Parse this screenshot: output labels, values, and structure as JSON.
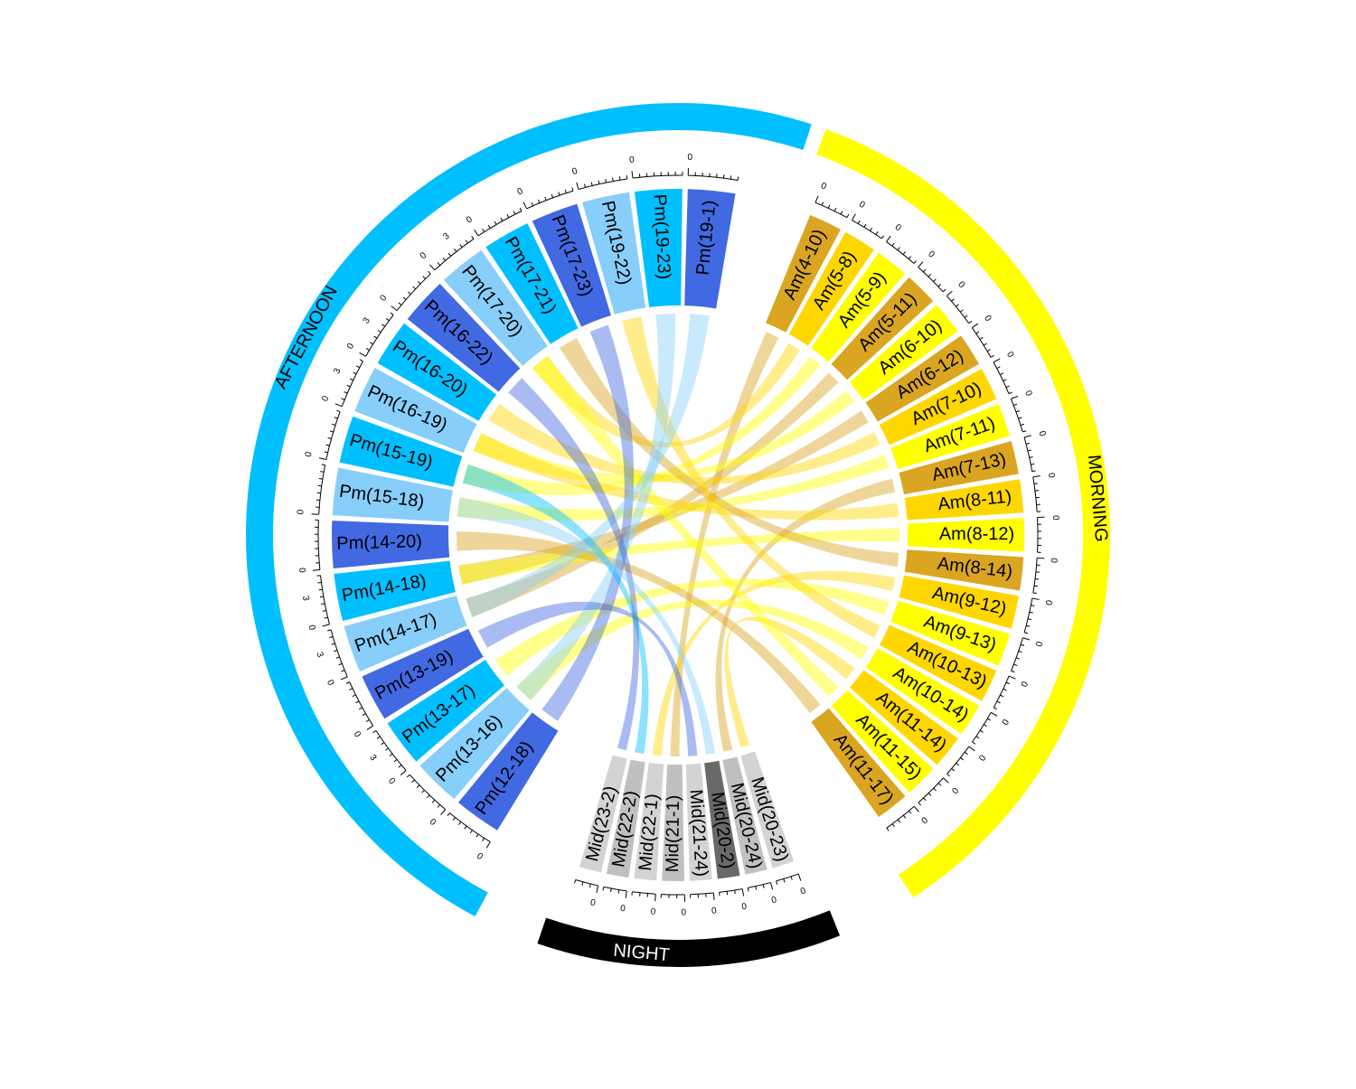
{
  "groups": [
    {
      "id": "morning",
      "label": "MORNING",
      "color": "#FFFF00",
      "text_color": "#000000"
    },
    {
      "id": "night",
      "label": "NIGHT",
      "color": "#000000",
      "text_color": "#FFFFFF"
    },
    {
      "id": "afternoon",
      "label": "AFTERNOON",
      "color": "#00BFFF",
      "text_color": "#000000"
    }
  ],
  "sectors": [
    {
      "label": "Am(4-10)",
      "group": "morning",
      "color": "#DAA520",
      "ticks": [
        "0"
      ]
    },
    {
      "label": "Am(5-8)",
      "group": "morning",
      "color": "#FFD700",
      "ticks": [
        "0"
      ]
    },
    {
      "label": "Am(5-9)",
      "group": "morning",
      "color": "#FFFF00",
      "ticks": [
        "0"
      ]
    },
    {
      "label": "Am(5-11)",
      "group": "morning",
      "color": "#DAA520",
      "ticks": [
        "0"
      ]
    },
    {
      "label": "Am(6-10)",
      "group": "morning",
      "color": "#FFFF00",
      "ticks": [
        "0"
      ]
    },
    {
      "label": "Am(6-12)",
      "group": "morning",
      "color": "#DAA520",
      "ticks": [
        "0"
      ]
    },
    {
      "label": "Am(7-10)",
      "group": "morning",
      "color": "#FFD700",
      "ticks": [
        "0"
      ]
    },
    {
      "label": "Am(7-11)",
      "group": "morning",
      "color": "#FFFF00",
      "ticks": [
        "0"
      ]
    },
    {
      "label": "Am(7-13)",
      "group": "morning",
      "color": "#DAA520",
      "ticks": [
        "0"
      ]
    },
    {
      "label": "Am(8-11)",
      "group": "morning",
      "color": "#FFD700",
      "ticks": [
        "0"
      ]
    },
    {
      "label": "Am(8-12)",
      "group": "morning",
      "color": "#FFFF00",
      "ticks": [
        "0"
      ]
    },
    {
      "label": "Am(8-14)",
      "group": "morning",
      "color": "#DAA520",
      "ticks": [
        "0"
      ]
    },
    {
      "label": "Am(9-12)",
      "group": "morning",
      "color": "#FFD700",
      "ticks": [
        "0"
      ]
    },
    {
      "label": "Am(9-13)",
      "group": "morning",
      "color": "#FFFF00",
      "ticks": [
        "0"
      ]
    },
    {
      "label": "Am(10-13)",
      "group": "morning",
      "color": "#FFD700",
      "ticks": [
        "0"
      ]
    },
    {
      "label": "Am(10-14)",
      "group": "morning",
      "color": "#FFFF00",
      "ticks": [
        "0"
      ]
    },
    {
      "label": "Am(11-14)",
      "group": "morning",
      "color": "#FFD700",
      "ticks": [
        "0"
      ]
    },
    {
      "label": "Am(11-15)",
      "group": "morning",
      "color": "#FFFF00",
      "ticks": [
        "0"
      ]
    },
    {
      "label": "Am(11-17)",
      "group": "morning",
      "color": "#DAA520",
      "ticks": [
        "0"
      ]
    },
    {
      "label": "Mid(20-23)",
      "group": "night",
      "color": "#D3D3D3",
      "ticks": [
        "0"
      ]
    },
    {
      "label": "Mid(20-24)",
      "group": "night",
      "color": "#C0C0C0",
      "ticks": [
        "0"
      ]
    },
    {
      "label": "Mid(20-2)",
      "group": "night",
      "color": "#696969",
      "ticks": [
        "0"
      ]
    },
    {
      "label": "Mid(21-24)",
      "group": "night",
      "color": "#D3D3D3",
      "ticks": [
        "0"
      ]
    },
    {
      "label": "Mid(21-1)",
      "group": "night",
      "color": "#C0C0C0",
      "ticks": [
        "0"
      ]
    },
    {
      "label": "Mid(22-1)",
      "group": "night",
      "color": "#D3D3D3",
      "ticks": [
        "0"
      ]
    },
    {
      "label": "Mid(22-2)",
      "group": "night",
      "color": "#C0C0C0",
      "ticks": [
        "0"
      ]
    },
    {
      "label": "Mid(23-2)",
      "group": "night",
      "color": "#D3D3D3",
      "ticks": [
        "0"
      ]
    },
    {
      "label": "Pm(12-18)",
      "group": "afternoon",
      "color": "#4169E1",
      "ticks": [
        "0"
      ]
    },
    {
      "label": "Pm(13-16)",
      "group": "afternoon",
      "color": "#87CEFA",
      "ticks": [
        "0"
      ]
    },
    {
      "label": "Pm(13-17)",
      "group": "afternoon",
      "color": "#00BFFF",
      "ticks": [
        "0",
        "3"
      ]
    },
    {
      "label": "Pm(13-19)",
      "group": "afternoon",
      "color": "#4169E1",
      "ticks": [
        "0"
      ]
    },
    {
      "label": "Pm(14-17)",
      "group": "afternoon",
      "color": "#87CEFA",
      "ticks": [
        "0",
        "3"
      ]
    },
    {
      "label": "Pm(14-18)",
      "group": "afternoon",
      "color": "#00BFFF",
      "ticks": [
        "0",
        "3"
      ]
    },
    {
      "label": "Pm(14-20)",
      "group": "afternoon",
      "color": "#4169E1",
      "ticks": [
        "0"
      ]
    },
    {
      "label": "Pm(15-18)",
      "group": "afternoon",
      "color": "#87CEFA",
      "ticks": [
        "0"
      ]
    },
    {
      "label": "Pm(15-19)",
      "group": "afternoon",
      "color": "#00BFFF",
      "ticks": [
        "0"
      ]
    },
    {
      "label": "Pm(16-19)",
      "group": "afternoon",
      "color": "#87CEFA",
      "ticks": [
        "0",
        "3"
      ]
    },
    {
      "label": "Pm(16-20)",
      "group": "afternoon",
      "color": "#00BFFF",
      "ticks": [
        "0",
        "3"
      ]
    },
    {
      "label": "Pm(16-22)",
      "group": "afternoon",
      "color": "#4169E1",
      "ticks": [
        "0"
      ]
    },
    {
      "label": "Pm(17-20)",
      "group": "afternoon",
      "color": "#87CEFA",
      "ticks": [
        "0",
        "3"
      ]
    },
    {
      "label": "Pm(17-21)",
      "group": "afternoon",
      "color": "#00BFFF",
      "ticks": [
        "0"
      ]
    },
    {
      "label": "Pm(17-23)",
      "group": "afternoon",
      "color": "#4169E1",
      "ticks": [
        "0"
      ]
    },
    {
      "label": "Pm(19-22)",
      "group": "afternoon",
      "color": "#87CEFA",
      "ticks": [
        "0"
      ]
    },
    {
      "label": "Pm(19-23)",
      "group": "afternoon",
      "color": "#00BFFF",
      "ticks": [
        "0"
      ]
    },
    {
      "label": "Pm(19-1)",
      "group": "afternoon",
      "color": "#4169E1",
      "ticks": [
        "0"
      ]
    }
  ],
  "links": [
    {
      "from": "Am(4-10)",
      "to": "Mid(21-1)"
    },
    {
      "from": "Am(5-8)",
      "to": "Pm(17-20)"
    },
    {
      "from": "Am(5-9)",
      "to": "Pm(15-19)"
    },
    {
      "from": "Am(5-11)",
      "to": "Pm(14-17)"
    },
    {
      "from": "Am(6-10)",
      "to": "Pm(16-19)"
    },
    {
      "from": "Am(6-12)",
      "to": "Pm(14-18)"
    },
    {
      "from": "Am(7-10)",
      "to": "Pm(16-20)"
    },
    {
      "from": "Am(7-11)",
      "to": "Pm(15-18)"
    },
    {
      "from": "Am(7-13)",
      "to": "Mid(20-24)"
    },
    {
      "from": "Am(8-11)",
      "to": "Pm(16-19)"
    },
    {
      "from": "Am(8-12)",
      "to": "Pm(14-18)"
    },
    {
      "from": "Am(8-14)",
      "to": "Pm(17-21)"
    },
    {
      "from": "Am(9-12)",
      "to": "Mid(22-1)"
    },
    {
      "from": "Am(9-13)",
      "to": "Pm(13-17)"
    },
    {
      "from": "Am(10-13)",
      "to": "Pm(19-22)"
    },
    {
      "from": "Am(10-14)",
      "to": "Pm(13-16)"
    },
    {
      "from": "Am(11-14)",
      "to": "Mid(20-23)"
    },
    {
      "from": "Am(11-15)",
      "to": "Pm(17-20)"
    },
    {
      "from": "Am(11-17)",
      "to": "Pm(14-20)"
    },
    {
      "from": "Pm(12-18)",
      "to": "Pm(17-23)"
    },
    {
      "from": "Pm(13-16)",
      "to": "Pm(19-23)"
    },
    {
      "from": "Pm(13-19)",
      "to": "Mid(21-24)"
    },
    {
      "from": "Pm(14-17)",
      "to": "Pm(19-1)"
    },
    {
      "from": "Pm(15-19)",
      "to": "Mid(22-2)"
    },
    {
      "from": "Pm(16-22)",
      "to": "Mid(23-2)"
    },
    {
      "from": "Pm(15-18)",
      "to": "Mid(20-2)"
    }
  ]
}
